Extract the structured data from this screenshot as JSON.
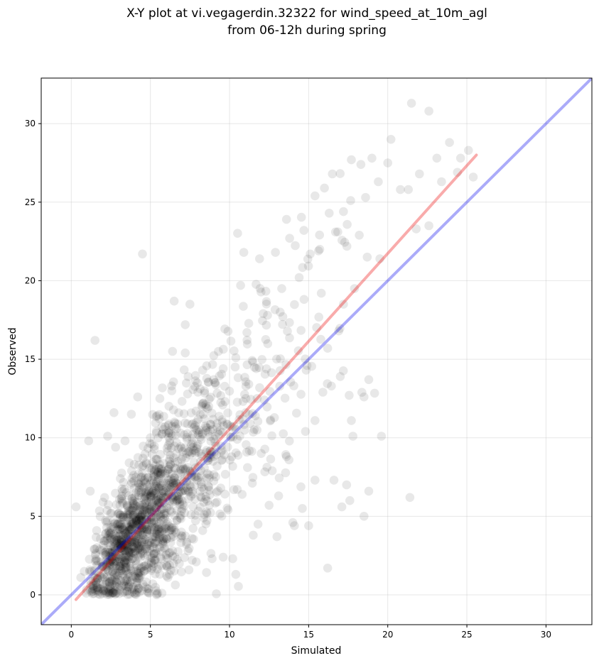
{
  "chart_data": {
    "type": "scatter",
    "title_lines": [
      "X-Y plot at vi.vegagerdin.32322 for wind_speed_at_10m_agl",
      "from 06-12h during spring"
    ],
    "xlabel": "Simulated",
    "ylabel": "Observed",
    "xlim": [
      -1.9,
      32.9
    ],
    "ylim": [
      -1.9,
      32.9
    ],
    "xticks": [
      0,
      5,
      10,
      15,
      20,
      25,
      30
    ],
    "yticks": [
      0,
      5,
      10,
      15,
      20,
      25,
      30
    ],
    "grid": true,
    "point_color": "#000000",
    "point_alpha": 0.09,
    "identity_line": {
      "color": "#0000ee",
      "alpha": 0.33,
      "from": [
        -1.9,
        -1.9
      ],
      "to": [
        32.9,
        32.9
      ]
    },
    "fit_line": {
      "color": "#ee0000",
      "alpha": 0.33,
      "from": [
        0.3,
        -0.3
      ],
      "to": [
        25.6,
        28.0
      ]
    },
    "dense_cloud": {
      "count": 1500,
      "x_range": [
        0.3,
        19.5
      ],
      "slope": 1.1,
      "intercept": -0.5
    },
    "points": [
      [
        4.5,
        21.7
      ],
      [
        1.5,
        16.2
      ],
      [
        6.5,
        18.7
      ],
      [
        7.5,
        18.5
      ],
      [
        7.2,
        17.2
      ],
      [
        2.7,
        11.6
      ],
      [
        3.8,
        11.5
      ],
      [
        0.3,
        5.6
      ],
      [
        1.1,
        9.8
      ],
      [
        10.9,
        21.8
      ],
      [
        10.7,
        19.7
      ],
      [
        21.5,
        31.3
      ],
      [
        22.6,
        30.8
      ],
      [
        20.2,
        29.0
      ],
      [
        23.9,
        28.8
      ],
      [
        25.1,
        28.3
      ],
      [
        25.4,
        26.6
      ],
      [
        22.6,
        23.5
      ],
      [
        21.3,
        25.8
      ],
      [
        21.8,
        23.3
      ],
      [
        24.4,
        26.9
      ],
      [
        23.4,
        26.3
      ],
      [
        21.4,
        6.2
      ],
      [
        18.5,
        5.0
      ],
      [
        18.8,
        6.6
      ],
      [
        16.2,
        1.7
      ],
      [
        17.6,
        6.0
      ],
      [
        17.1,
        5.6
      ],
      [
        18.8,
        13.7
      ],
      [
        18.5,
        12.6
      ],
      [
        17.8,
        10.1
      ],
      [
        19.6,
        10.1
      ],
      [
        17.4,
        7.0
      ],
      [
        16.6,
        7.3
      ],
      [
        15.4,
        7.3
      ],
      [
        15.0,
        4.4
      ],
      [
        14.6,
        5.5
      ],
      [
        14.1,
        4.4
      ],
      [
        13.0,
        3.7
      ],
      [
        11.5,
        3.8
      ],
      [
        10.4,
        1.3
      ],
      [
        10.2,
        2.3
      ],
      [
        5.4,
        0.0
      ],
      [
        3.6,
        0.5
      ],
      [
        19.5,
        21.4
      ],
      [
        18.7,
        21.5
      ],
      [
        17.2,
        18.5
      ],
      [
        16.0,
        25.9
      ],
      [
        15.4,
        25.4
      ],
      [
        14.7,
        23.2
      ],
      [
        13.6,
        23.9
      ],
      [
        12.9,
        21.8
      ],
      [
        11.9,
        21.4
      ],
      [
        8.3,
        14.3
      ],
      [
        9.3,
        15.5
      ],
      [
        6.4,
        15.5
      ],
      [
        7.2,
        15.4
      ],
      [
        4.2,
        12.6
      ],
      [
        5.6,
        12.5
      ],
      [
        2.3,
        10.1
      ],
      [
        1.2,
        6.6
      ],
      [
        2.8,
        9.4
      ],
      [
        3.4,
        9.8
      ],
      [
        16.9,
        16.8
      ],
      [
        16.2,
        15.7
      ],
      [
        17.7,
        11.1
      ],
      [
        17.0,
        13.9
      ],
      [
        15.9,
        12.9
      ],
      [
        15.4,
        11.1
      ],
      [
        14.8,
        10.4
      ],
      [
        12.5,
        5.7
      ],
      [
        13.1,
        6.3
      ],
      [
        14.0,
        4.6
      ],
      [
        9.6,
        2.4
      ],
      [
        8.9,
        2.3
      ],
      [
        11.8,
        4.5
      ],
      [
        12.7,
        7.9
      ],
      [
        6.1,
        1.1
      ],
      [
        7.9,
        2.1
      ],
      [
        4.8,
        0.4
      ],
      [
        1.4,
        0.9
      ],
      [
        0.6,
        1.1
      ],
      [
        19.0,
        27.8
      ],
      [
        18.3,
        27.4
      ],
      [
        20.0,
        27.5
      ],
      [
        19.4,
        26.3
      ],
      [
        17.7,
        27.7
      ],
      [
        18.6,
        25.3
      ],
      [
        17.2,
        24.4
      ],
      [
        16.5,
        26.8
      ],
      [
        13.3,
        19.5
      ],
      [
        12.4,
        17.8
      ],
      [
        11.1,
        16.7
      ],
      [
        13.8,
        22.7
      ],
      [
        14.4,
        20.2
      ],
      [
        15.7,
        22.0
      ],
      [
        16.7,
        23.1
      ],
      [
        9.0,
        13.7
      ],
      [
        10.4,
        15.1
      ],
      [
        8.0,
        12.9
      ],
      [
        20.8,
        25.8
      ],
      [
        23.1,
        27.8
      ],
      [
        22.0,
        26.8
      ],
      [
        24.6,
        27.8
      ],
      [
        16.3,
        24.3
      ],
      [
        15.1,
        21.7
      ],
      [
        13.2,
        18.0
      ],
      [
        9.6,
        14.4
      ],
      [
        12.2,
        12.4
      ],
      [
        14.9,
        14.6
      ],
      [
        11.3,
        10.9
      ],
      [
        6.9,
        10.3
      ],
      [
        2.0,
        5.9
      ],
      [
        3.1,
        7.4
      ],
      [
        8.6,
        8.7
      ],
      [
        10.8,
        6.4
      ],
      [
        12.0,
        9.0
      ],
      [
        13.6,
        8.8
      ],
      [
        15.8,
        19.2
      ],
      [
        17.9,
        19.5
      ],
      [
        18.2,
        22.9
      ]
    ]
  }
}
